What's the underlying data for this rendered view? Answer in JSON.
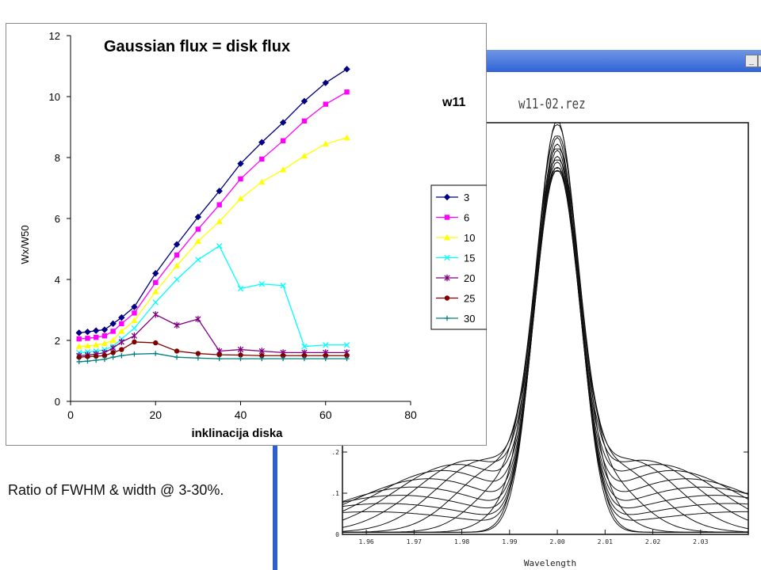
{
  "overlay_title": "Gaussian flux = disk flux",
  "overlay_tag": "w11",
  "caption": "Ratio of FWHM & width @ 3-30%.",
  "window": {
    "label": "w11-02.rez",
    "buttons": {
      "minimize": "_",
      "restore": "□"
    },
    "accent_color": "#2f63d6"
  },
  "chart_data": [
    {
      "type": "line",
      "title": "Gaussian flux = disk flux",
      "xlabel": "inklinacija diska",
      "ylabel": "Wx/W50",
      "xlim": [
        0,
        80
      ],
      "ylim": [
        0,
        12
      ],
      "xticks": [
        0,
        20,
        40,
        60,
        80
      ],
      "yticks": [
        0,
        2,
        4,
        6,
        8,
        10,
        12
      ],
      "grid": false,
      "legend_position": "right",
      "x": [
        2,
        4,
        6,
        8,
        10,
        12,
        15,
        20,
        25,
        30,
        35,
        40,
        45,
        50,
        55,
        60,
        65
      ],
      "series": [
        {
          "name": "3",
          "color": "#000080",
          "marker": "diamond",
          "values": [
            2.25,
            2.28,
            2.32,
            2.35,
            2.55,
            2.75,
            3.1,
            4.2,
            5.15,
            6.05,
            6.9,
            7.8,
            8.5,
            9.15,
            9.85,
            10.45,
            10.9
          ]
        },
        {
          "name": "6",
          "color": "#ff00ff",
          "marker": "square",
          "values": [
            2.05,
            2.07,
            2.1,
            2.15,
            2.3,
            2.55,
            2.9,
            3.9,
            4.8,
            5.65,
            6.45,
            7.3,
            7.95,
            8.55,
            9.2,
            9.75,
            10.15
          ]
        },
        {
          "name": "10",
          "color": "#ffff00",
          "marker": "triangle",
          "values": [
            1.8,
            1.82,
            1.85,
            1.9,
            2.0,
            2.3,
            2.65,
            3.6,
            4.45,
            5.25,
            5.9,
            6.65,
            7.2,
            7.6,
            8.05,
            8.45,
            8.65
          ]
        },
        {
          "name": "15",
          "color": "#00ffff",
          "marker": "x",
          "values": [
            1.6,
            1.62,
            1.65,
            1.7,
            1.8,
            2.05,
            2.4,
            3.25,
            4.0,
            4.65,
            5.1,
            3.7,
            3.85,
            3.8,
            1.8,
            1.85,
            1.85
          ]
        },
        {
          "name": "20",
          "color": "#800080",
          "marker": "star",
          "values": [
            1.5,
            1.52,
            1.55,
            1.6,
            1.75,
            1.95,
            2.15,
            2.85,
            2.5,
            2.7,
            1.65,
            1.7,
            1.65,
            1.6,
            1.6,
            1.6,
            1.6
          ]
        },
        {
          "name": "25",
          "color": "#800000",
          "marker": "circle",
          "values": [
            1.45,
            1.47,
            1.48,
            1.5,
            1.6,
            1.7,
            1.95,
            1.92,
            1.65,
            1.57,
            1.53,
            1.52,
            1.5,
            1.5,
            1.5,
            1.5,
            1.5
          ]
        },
        {
          "name": "30",
          "color": "#008080",
          "marker": "plus",
          "values": [
            1.3,
            1.32,
            1.35,
            1.38,
            1.45,
            1.5,
            1.55,
            1.57,
            1.45,
            1.42,
            1.4,
            1.4,
            1.4,
            1.4,
            1.4,
            1.4,
            1.4
          ]
        }
      ]
    },
    {
      "type": "line",
      "title": "",
      "xlabel": "Wavelength",
      "ylabel": "",
      "xlim": [
        1.955,
        2.04
      ],
      "ylim": [
        0,
        1.0
      ],
      "xticks": [
        1.96,
        1.97,
        1.98,
        1.99,
        2.0,
        2.01,
        2.02,
        2.03
      ],
      "xtick_labels": [
        "1.96",
        "1.97",
        "1.98",
        "1.99",
        "2.00",
        "2.01",
        "2.02",
        "2.03"
      ],
      "yticks": [
        0,
        0.1,
        0.2
      ],
      "ytick_labels": [
        "0",
        ".1",
        ".2"
      ],
      "grid": false,
      "profiles": {
        "center": 2.0,
        "gaussian_sigma": 0.0045,
        "peak": 1.0,
        "shoulder_positions": [
          0.0,
          0.003,
          0.006,
          0.009,
          0.012,
          0.015,
          0.018,
          0.021,
          0.024,
          0.027,
          0.03,
          0.033,
          0.036,
          0.039
        ],
        "shoulder_heights": [
          0.01,
          0.055,
          0.1,
          0.135,
          0.16,
          0.175,
          0.175,
          0.165,
          0.15,
          0.13,
          0.11,
          0.09,
          0.07,
          0.05
        ]
      }
    }
  ]
}
